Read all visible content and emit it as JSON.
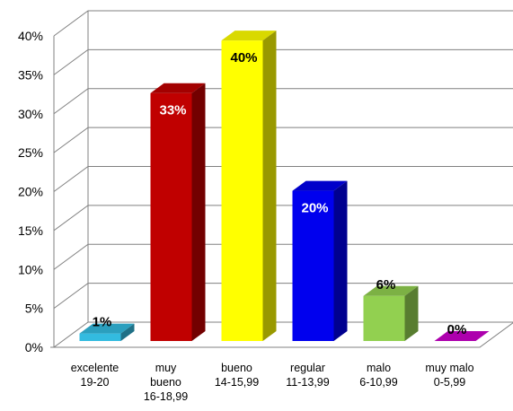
{
  "chart_data": {
    "type": "bar",
    "style": "3d-column",
    "categories": [
      [
        "excelente",
        "19-20"
      ],
      [
        "muy",
        "bueno",
        "16-18,99"
      ],
      [
        "bueno",
        "14-15,99"
      ],
      [
        "regular",
        "11-13,99"
      ],
      [
        "malo",
        "6-10,99"
      ],
      [
        "muy malo",
        "0-5,99"
      ]
    ],
    "values": [
      1,
      33,
      40,
      20,
      6,
      0
    ],
    "data_labels": [
      "1%",
      "33%",
      "40%",
      "20%",
      "6%",
      "0%"
    ],
    "label_colors": [
      "#000000",
      "#ffffff",
      "#000000",
      "#ffffff",
      "#000000",
      "#000000"
    ],
    "colors": [
      "#33bbe0",
      "#c00000",
      "#ffff00",
      "#0000ee",
      "#92d050",
      "#cc00cc"
    ],
    "ylim": [
      0,
      40
    ],
    "yticks": [
      0,
      5,
      10,
      15,
      20,
      25,
      30,
      35,
      40
    ],
    "ytick_labels": [
      "0%",
      "5%",
      "10%",
      "15%",
      "20%",
      "25%",
      "30%",
      "35%",
      "40%"
    ],
    "grid": true,
    "title": "",
    "xlabel": "",
    "ylabel": ""
  }
}
